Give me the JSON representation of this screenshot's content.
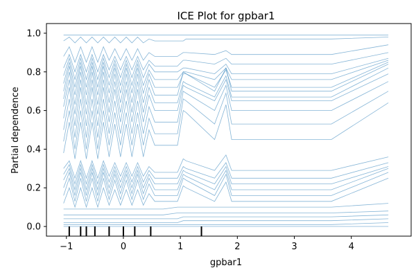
{
  "chart_data": {
    "type": "line",
    "title": "ICE Plot for gpbar1",
    "xlabel": "gpbar1",
    "ylabel": "Partial dependence",
    "xlim": [
      -1.35,
      5.05
    ],
    "ylim": [
      -0.05,
      1.05
    ],
    "x_ticks": [
      -1,
      0,
      1,
      2,
      3,
      4
    ],
    "y_ticks": [
      0.0,
      0.2,
      0.4,
      0.6,
      0.8,
      1.0
    ],
    "x_tick_labels": [
      "−1",
      "0",
      "1",
      "2",
      "3",
      "4"
    ],
    "y_tick_labels": [
      "0.0",
      "0.2",
      "0.4",
      "0.6",
      "0.8",
      "1.0"
    ],
    "grid": false,
    "line_color": "#1f77b4",
    "rug_color": "#000000",
    "grid_x": [
      -1.05,
      -0.95,
      -0.85,
      -0.75,
      -0.65,
      -0.55,
      -0.45,
      -0.35,
      -0.25,
      -0.15,
      -0.05,
      0.05,
      0.15,
      0.25,
      0.35,
      0.45,
      0.55,
      0.7,
      0.95,
      1.05,
      1.1,
      1.6,
      1.8,
      1.9,
      3.65,
      4.65
    ],
    "rug_x": [
      -0.95,
      -0.75,
      -0.65,
      -0.5,
      -0.25,
      0.0,
      0.2,
      0.48,
      1.37
    ],
    "ice_series": [
      {
        "values": [
          0.99,
          0.99,
          0.99,
          0.99,
          0.99,
          0.99,
          0.99,
          0.99,
          0.99,
          0.99,
          0.99,
          0.99,
          0.99,
          0.99,
          0.99,
          0.99,
          0.99,
          0.99,
          0.99,
          0.99,
          0.99,
          0.99,
          0.99,
          0.99,
          0.99,
          0.99
        ]
      },
      {
        "values": [
          0.96,
          0.98,
          0.95,
          0.98,
          0.95,
          0.98,
          0.95,
          0.98,
          0.95,
          0.98,
          0.95,
          0.98,
          0.95,
          0.98,
          0.95,
          0.97,
          0.96,
          0.96,
          0.96,
          0.96,
          0.97,
          0.97,
          0.97,
          0.97,
          0.97,
          0.98
        ]
      },
      {
        "values": [
          0.88,
          0.93,
          0.85,
          0.93,
          0.85,
          0.93,
          0.85,
          0.93,
          0.86,
          0.92,
          0.86,
          0.92,
          0.86,
          0.92,
          0.86,
          0.9,
          0.88,
          0.88,
          0.88,
          0.9,
          0.9,
          0.89,
          0.91,
          0.89,
          0.89,
          0.94
        ]
      },
      {
        "values": [
          0.82,
          0.89,
          0.8,
          0.89,
          0.8,
          0.89,
          0.8,
          0.89,
          0.81,
          0.88,
          0.81,
          0.88,
          0.81,
          0.88,
          0.81,
          0.86,
          0.83,
          0.83,
          0.83,
          0.86,
          0.86,
          0.84,
          0.87,
          0.84,
          0.84,
          0.9
        ]
      },
      {
        "values": [
          0.78,
          0.87,
          0.76,
          0.87,
          0.76,
          0.87,
          0.76,
          0.87,
          0.77,
          0.86,
          0.77,
          0.86,
          0.77,
          0.86,
          0.77,
          0.84,
          0.8,
          0.8,
          0.8,
          0.82,
          0.82,
          0.79,
          0.84,
          0.79,
          0.79,
          0.87
        ]
      },
      {
        "values": [
          0.74,
          0.85,
          0.72,
          0.85,
          0.72,
          0.85,
          0.72,
          0.85,
          0.73,
          0.84,
          0.73,
          0.84,
          0.73,
          0.84,
          0.73,
          0.81,
          0.76,
          0.76,
          0.76,
          0.8,
          0.8,
          0.76,
          0.82,
          0.76,
          0.76,
          0.86
        ]
      },
      {
        "values": [
          0.7,
          0.83,
          0.68,
          0.83,
          0.68,
          0.83,
          0.68,
          0.83,
          0.69,
          0.82,
          0.69,
          0.82,
          0.69,
          0.82,
          0.69,
          0.79,
          0.72,
          0.72,
          0.72,
          0.79,
          0.79,
          0.72,
          0.81,
          0.72,
          0.72,
          0.85
        ]
      },
      {
        "values": [
          0.66,
          0.8,
          0.63,
          0.8,
          0.63,
          0.8,
          0.63,
          0.8,
          0.64,
          0.79,
          0.64,
          0.79,
          0.64,
          0.79,
          0.64,
          0.76,
          0.68,
          0.68,
          0.68,
          0.8,
          0.79,
          0.7,
          0.82,
          0.7,
          0.7,
          0.84
        ]
      },
      {
        "values": [
          0.62,
          0.76,
          0.58,
          0.76,
          0.58,
          0.76,
          0.58,
          0.76,
          0.59,
          0.75,
          0.59,
          0.75,
          0.59,
          0.75,
          0.59,
          0.72,
          0.64,
          0.64,
          0.64,
          0.75,
          0.74,
          0.67,
          0.78,
          0.67,
          0.67,
          0.82
        ]
      },
      {
        "values": [
          0.56,
          0.72,
          0.52,
          0.72,
          0.52,
          0.72,
          0.52,
          0.72,
          0.54,
          0.71,
          0.54,
          0.71,
          0.54,
          0.71,
          0.54,
          0.68,
          0.6,
          0.6,
          0.6,
          0.73,
          0.72,
          0.65,
          0.76,
          0.65,
          0.65,
          0.79
        ]
      },
      {
        "values": [
          0.5,
          0.66,
          0.46,
          0.66,
          0.46,
          0.66,
          0.46,
          0.66,
          0.48,
          0.65,
          0.48,
          0.65,
          0.48,
          0.65,
          0.48,
          0.62,
          0.54,
          0.54,
          0.54,
          0.7,
          0.69,
          0.6,
          0.73,
          0.6,
          0.6,
          0.75
        ]
      },
      {
        "values": [
          0.44,
          0.6,
          0.4,
          0.6,
          0.4,
          0.6,
          0.4,
          0.6,
          0.42,
          0.59,
          0.42,
          0.59,
          0.42,
          0.59,
          0.42,
          0.56,
          0.48,
          0.48,
          0.48,
          0.66,
          0.65,
          0.53,
          0.69,
          0.53,
          0.53,
          0.7
        ]
      },
      {
        "values": [
          0.38,
          0.54,
          0.35,
          0.54,
          0.35,
          0.54,
          0.35,
          0.54,
          0.36,
          0.53,
          0.36,
          0.53,
          0.36,
          0.53,
          0.36,
          0.5,
          0.42,
          0.42,
          0.42,
          0.6,
          0.59,
          0.45,
          0.63,
          0.45,
          0.45,
          0.64
        ]
      },
      {
        "values": [
          0.3,
          0.34,
          0.25,
          0.34,
          0.25,
          0.34,
          0.25,
          0.34,
          0.26,
          0.33,
          0.26,
          0.33,
          0.26,
          0.33,
          0.26,
          0.31,
          0.28,
          0.28,
          0.28,
          0.35,
          0.34,
          0.29,
          0.37,
          0.29,
          0.29,
          0.36
        ]
      },
      {
        "values": [
          0.27,
          0.32,
          0.22,
          0.32,
          0.22,
          0.32,
          0.22,
          0.32,
          0.23,
          0.31,
          0.23,
          0.31,
          0.23,
          0.31,
          0.23,
          0.29,
          0.25,
          0.25,
          0.25,
          0.31,
          0.3,
          0.25,
          0.33,
          0.25,
          0.25,
          0.33
        ]
      },
      {
        "values": [
          0.24,
          0.3,
          0.19,
          0.3,
          0.19,
          0.3,
          0.19,
          0.3,
          0.2,
          0.29,
          0.2,
          0.29,
          0.2,
          0.29,
          0.2,
          0.27,
          0.22,
          0.22,
          0.22,
          0.29,
          0.28,
          0.22,
          0.31,
          0.22,
          0.22,
          0.31
        ]
      },
      {
        "values": [
          0.2,
          0.28,
          0.16,
          0.28,
          0.16,
          0.28,
          0.16,
          0.28,
          0.17,
          0.27,
          0.17,
          0.27,
          0.17,
          0.27,
          0.17,
          0.25,
          0.19,
          0.19,
          0.19,
          0.27,
          0.26,
          0.19,
          0.29,
          0.19,
          0.19,
          0.3
        ]
      },
      {
        "values": [
          0.16,
          0.25,
          0.13,
          0.25,
          0.13,
          0.25,
          0.13,
          0.25,
          0.14,
          0.24,
          0.14,
          0.24,
          0.14,
          0.24,
          0.14,
          0.22,
          0.16,
          0.16,
          0.16,
          0.25,
          0.24,
          0.16,
          0.27,
          0.16,
          0.16,
          0.28
        ]
      },
      {
        "values": [
          0.12,
          0.2,
          0.1,
          0.2,
          0.1,
          0.2,
          0.1,
          0.2,
          0.11,
          0.19,
          0.11,
          0.19,
          0.11,
          0.19,
          0.11,
          0.17,
          0.13,
          0.13,
          0.13,
          0.21,
          0.2,
          0.13,
          0.23,
          0.13,
          0.13,
          0.25
        ]
      },
      {
        "values": [
          0.09,
          0.09,
          0.09,
          0.09,
          0.09,
          0.09,
          0.09,
          0.09,
          0.09,
          0.09,
          0.09,
          0.09,
          0.09,
          0.09,
          0.09,
          0.09,
          0.09,
          0.09,
          0.1,
          0.1,
          0.1,
          0.1,
          0.1,
          0.1,
          0.1,
          0.12
        ]
      },
      {
        "values": [
          0.06,
          0.06,
          0.06,
          0.06,
          0.06,
          0.06,
          0.06,
          0.06,
          0.06,
          0.06,
          0.06,
          0.06,
          0.06,
          0.06,
          0.06,
          0.06,
          0.06,
          0.06,
          0.07,
          0.07,
          0.07,
          0.07,
          0.07,
          0.07,
          0.07,
          0.08
        ]
      },
      {
        "values": [
          0.04,
          0.04,
          0.04,
          0.04,
          0.04,
          0.04,
          0.04,
          0.04,
          0.04,
          0.04,
          0.04,
          0.04,
          0.04,
          0.04,
          0.04,
          0.04,
          0.04,
          0.04,
          0.04,
          0.05,
          0.05,
          0.05,
          0.05,
          0.05,
          0.05,
          0.06
        ]
      },
      {
        "values": [
          0.02,
          0.02,
          0.02,
          0.02,
          0.02,
          0.02,
          0.02,
          0.02,
          0.02,
          0.02,
          0.02,
          0.02,
          0.02,
          0.02,
          0.02,
          0.02,
          0.02,
          0.02,
          0.02,
          0.03,
          0.03,
          0.03,
          0.03,
          0.03,
          0.03,
          0.04
        ]
      },
      {
        "values": [
          0.01,
          0.01,
          0.01,
          0.01,
          0.01,
          0.01,
          0.01,
          0.01,
          0.01,
          0.01,
          0.01,
          0.01,
          0.01,
          0.01,
          0.01,
          0.01,
          0.01,
          0.01,
          0.01,
          0.01,
          0.01,
          0.01,
          0.01,
          0.01,
          0.01,
          0.02
        ]
      },
      {
        "values": [
          0.0,
          0.0,
          0.0,
          0.0,
          0.0,
          0.0,
          0.0,
          0.0,
          0.0,
          0.0,
          0.0,
          0.0,
          0.0,
          0.0,
          0.0,
          0.0,
          0.0,
          0.0,
          0.0,
          0.0,
          0.0,
          0.0,
          0.0,
          0.0,
          0.0,
          0.0
        ]
      }
    ]
  }
}
